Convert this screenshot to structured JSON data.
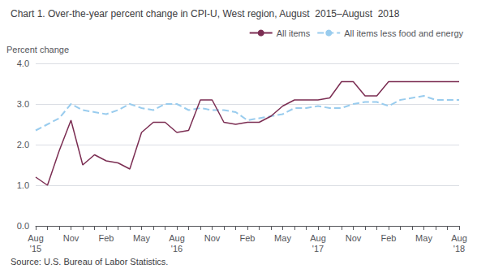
{
  "chart_data": {
    "type": "line",
    "title": "Chart 1. Over-the-year percent change in CPI-U, West region, August  2015–August  2018",
    "y_label": "Percent change",
    "source": "Source: U.S. Bureau of Labor Statistics.",
    "categories": [
      "Aug\n'15",
      null,
      null,
      "Nov",
      null,
      null,
      "Feb",
      null,
      null,
      "May",
      null,
      null,
      "Aug\n'16",
      null,
      null,
      "Nov",
      null,
      null,
      "Feb",
      null,
      null,
      "May",
      null,
      null,
      "Aug\n'17",
      null,
      null,
      "Nov",
      null,
      null,
      "Feb",
      null,
      null,
      "May",
      null,
      null,
      "Aug\n'18"
    ],
    "series": [
      {
        "name": "All items",
        "color": "#7B2D52",
        "line_style": "solid",
        "values": [
          1.2,
          1.0,
          1.85,
          2.6,
          1.5,
          1.75,
          1.6,
          1.55,
          1.4,
          2.3,
          2.55,
          2.55,
          2.3,
          2.35,
          3.1,
          3.1,
          2.55,
          2.5,
          2.55,
          2.55,
          2.7,
          2.95,
          3.1,
          3.1,
          3.1,
          3.15,
          3.55,
          3.55,
          3.2,
          3.2,
          3.55,
          3.55,
          3.55,
          3.55,
          3.55,
          3.55,
          3.55
        ]
      },
      {
        "name": "All items less food and energy",
        "color": "#99CCEE",
        "line_style": "dashed",
        "values": [
          2.35,
          2.5,
          2.65,
          3.0,
          2.85,
          2.8,
          2.75,
          2.85,
          3.0,
          2.9,
          2.85,
          3.0,
          3.0,
          2.85,
          2.9,
          2.85,
          2.85,
          2.8,
          2.6,
          2.65,
          2.7,
          2.75,
          2.9,
          2.9,
          2.95,
          2.9,
          2.9,
          3.0,
          3.05,
          3.05,
          2.95,
          3.1,
          3.15,
          3.2,
          3.1,
          3.1,
          3.1
        ]
      }
    ],
    "ylim": [
      0.0,
      4.0
    ],
    "yticks": [
      {
        "value": 0,
        "label": "0.0"
      },
      {
        "value": 1,
        "label": "1.0"
      },
      {
        "value": 2,
        "label": "2.0"
      },
      {
        "value": 3,
        "label": "3.0"
      },
      {
        "value": 4,
        "label": "4.0"
      }
    ],
    "grid": true,
    "legend": "upper right"
  }
}
